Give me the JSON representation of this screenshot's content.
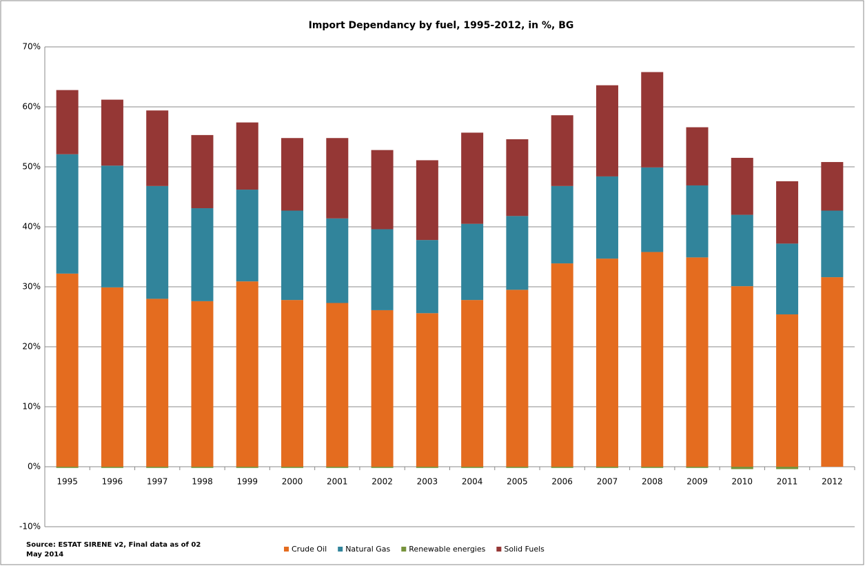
{
  "chart_data": {
    "type": "stacked_bar",
    "title": "Import Dependancy by fuel, 1995-2012, in %, BG",
    "source": "Source: ESTAT SIRENE v2, Final data as of 02 May 2014",
    "categories": [
      "1995",
      "1996",
      "1997",
      "1998",
      "1999",
      "2000",
      "2001",
      "2002",
      "2003",
      "2004",
      "2005",
      "2006",
      "2007",
      "2008",
      "2009",
      "2010",
      "2011",
      "2012"
    ],
    "series": [
      {
        "name": "Crude Oil",
        "color": "#e46c1f",
        "values": [
          32.2,
          29.9,
          28.0,
          27.6,
          30.9,
          27.8,
          27.3,
          26.1,
          25.6,
          27.8,
          29.5,
          33.9,
          34.7,
          35.8,
          34.9,
          30.1,
          25.4,
          31.6
        ]
      },
      {
        "name": "Natural Gas",
        "color": "#31849b",
        "values": [
          19.9,
          20.3,
          18.8,
          15.5,
          15.3,
          14.9,
          14.1,
          13.5,
          12.2,
          12.7,
          12.3,
          12.9,
          13.7,
          14.1,
          12.0,
          11.9,
          11.8,
          11.1
        ]
      },
      {
        "name": "Renewable energies",
        "color": "#77933c",
        "values": [
          -0.2,
          -0.2,
          -0.2,
          -0.2,
          -0.2,
          -0.2,
          -0.2,
          -0.2,
          -0.2,
          -0.2,
          -0.2,
          -0.2,
          -0.2,
          -0.2,
          -0.2,
          -0.4,
          -0.4,
          0
        ]
      },
      {
        "name": "Solid Fuels",
        "color": "#953735",
        "values": [
          10.7,
          11.0,
          12.6,
          12.2,
          11.2,
          12.1,
          13.4,
          13.2,
          13.3,
          15.2,
          12.8,
          11.8,
          15.2,
          15.9,
          9.7,
          9.5,
          10.4,
          8.1
        ]
      }
    ],
    "ylim": [
      -10,
      70
    ],
    "yticks": [
      {
        "value": -10,
        "label": "-10%"
      },
      {
        "value": 0,
        "label": "0%"
      },
      {
        "value": 10,
        "label": "10%"
      },
      {
        "value": 20,
        "label": "20%"
      },
      {
        "value": 30,
        "label": "30%"
      },
      {
        "value": 40,
        "label": "40%"
      },
      {
        "value": 50,
        "label": "50%"
      },
      {
        "value": 60,
        "label": "60%"
      },
      {
        "value": 70,
        "label": "70%"
      }
    ],
    "grid": true,
    "legend": "bottom"
  }
}
